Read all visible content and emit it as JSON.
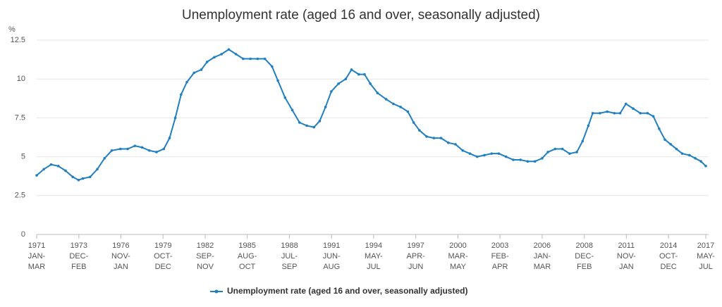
{
  "chart_data": {
    "type": "line",
    "title": "Unemployment rate (aged 16 and over, seasonally adjusted)",
    "y_unit": "%",
    "x": [
      1971.0,
      1971.5,
      1972.0,
      1972.5,
      1973.0,
      1973.5,
      1973.9,
      1974.2,
      1974.7,
      1975.2,
      1975.7,
      1976.2,
      1976.8,
      1977.3,
      1977.8,
      1978.3,
      1978.8,
      1979.3,
      1979.8,
      1980.2,
      1980.6,
      1981.0,
      1981.4,
      1981.9,
      1982.4,
      1982.8,
      1983.3,
      1983.8,
      1984.3,
      1984.8,
      1985.3,
      1985.8,
      1986.3,
      1986.8,
      1987.3,
      1987.7,
      1988.2,
      1988.7,
      1989.2,
      1989.7,
      1990.2,
      1990.6,
      1991.0,
      1991.4,
      1991.9,
      1992.4,
      1992.8,
      1993.3,
      1993.7,
      1994.1,
      1994.6,
      1995.2,
      1995.7,
      1996.2,
      1996.7,
      1997.1,
      1997.5,
      1998.0,
      1998.5,
      1999.0,
      1999.5,
      2000.0,
      2000.5,
      2001.0,
      2001.5,
      2002.0,
      2002.5,
      2003.0,
      2003.5,
      2004.0,
      2004.5,
      2005.0,
      2005.5,
      2006.0,
      2006.4,
      2006.9,
      2007.4,
      2007.9,
      2008.4,
      2008.8,
      2009.2,
      2009.5,
      2010.0,
      2010.5,
      2011.0,
      2011.4,
      2011.8,
      2012.3,
      2012.8,
      2013.3,
      2013.7,
      2014.1,
      2014.5,
      2014.9,
      2015.3,
      2015.7,
      2016.2,
      2016.6,
      2017.0,
      2017.33
    ],
    "series": [
      {
        "name": "Unemployment rate (aged 16 and over, seasonally adjusted)",
        "color": "#1f7fc0",
        "values": [
          3.8,
          4.2,
          4.5,
          4.4,
          4.1,
          3.7,
          3.5,
          3.6,
          3.7,
          4.2,
          4.9,
          5.4,
          5.5,
          5.5,
          5.7,
          5.6,
          5.4,
          5.3,
          5.5,
          6.2,
          7.5,
          9.0,
          9.8,
          10.4,
          10.6,
          11.1,
          11.4,
          11.6,
          11.9,
          11.6,
          11.3,
          11.3,
          11.3,
          11.3,
          10.8,
          9.9,
          8.8,
          8.0,
          7.2,
          7.0,
          6.9,
          7.3,
          8.2,
          9.2,
          9.7,
          10.0,
          10.6,
          10.3,
          10.3,
          9.7,
          9.1,
          8.7,
          8.4,
          8.2,
          7.9,
          7.2,
          6.7,
          6.3,
          6.2,
          6.2,
          5.9,
          5.8,
          5.4,
          5.2,
          5.0,
          5.1,
          5.2,
          5.2,
          5.0,
          4.8,
          4.8,
          4.7,
          4.7,
          4.9,
          5.3,
          5.5,
          5.5,
          5.2,
          5.3,
          6.0,
          7.0,
          7.8,
          7.8,
          7.9,
          7.8,
          7.8,
          8.4,
          8.1,
          7.8,
          7.8,
          7.6,
          6.8,
          6.1,
          5.8,
          5.5,
          5.2,
          5.1,
          4.9,
          4.7,
          4.4
        ]
      }
    ],
    "ylim": [
      0,
      12.5
    ],
    "yticks": [
      0,
      2.5,
      5,
      7.5,
      10,
      12.5
    ],
    "xlim": [
      1971.0,
      2017.33
    ],
    "xticks": [
      {
        "value": 1971.0,
        "label": [
          "1971",
          "JAN-",
          "MAR"
        ]
      },
      {
        "value": 1973.92,
        "label": [
          "1973",
          "DEC-",
          "FEB"
        ]
      },
      {
        "value": 1976.83,
        "label": [
          "1976",
          "NOV-",
          "JAN"
        ]
      },
      {
        "value": 1979.75,
        "label": [
          "1979",
          "OCT-",
          "DEC"
        ]
      },
      {
        "value": 1982.67,
        "label": [
          "1982",
          "SEP-",
          "NOV"
        ]
      },
      {
        "value": 1985.58,
        "label": [
          "1985",
          "AUG-",
          "OCT"
        ]
      },
      {
        "value": 1988.5,
        "label": [
          "1988",
          "JUL-",
          "SEP"
        ]
      },
      {
        "value": 1991.42,
        "label": [
          "1991",
          "JUN-",
          "AUG"
        ]
      },
      {
        "value": 1994.33,
        "label": [
          "1994",
          "MAY-",
          "JUL"
        ]
      },
      {
        "value": 1997.25,
        "label": [
          "1997",
          "APR-",
          "JUN"
        ]
      },
      {
        "value": 2000.17,
        "label": [
          "2000",
          "MAR-",
          "MAY"
        ]
      },
      {
        "value": 2003.08,
        "label": [
          "2003",
          "FEB-",
          "APR"
        ]
      },
      {
        "value": 2006.0,
        "label": [
          "2006",
          "JAN-",
          "MAR"
        ]
      },
      {
        "value": 2008.92,
        "label": [
          "2008",
          "DEC-",
          "FEB"
        ]
      },
      {
        "value": 2011.83,
        "label": [
          "2011",
          "NOV-",
          "JAN"
        ]
      },
      {
        "value": 2014.75,
        "label": [
          "2014",
          "OCT-",
          "DEC"
        ]
      },
      {
        "value": 2017.33,
        "label": [
          "2017",
          "MAY-",
          "JUL"
        ]
      }
    ],
    "grid": true,
    "legend": "bottom"
  }
}
